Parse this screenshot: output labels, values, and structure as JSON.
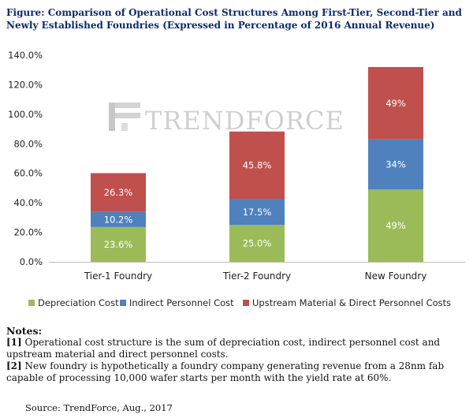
{
  "figure": {
    "title": "Figure: Comparison of Operational Cost Structures Among First-Tier, Second-Tier and Newly Established Foundries (Expressed in Percentage of  2016 Annual Revenue)"
  },
  "watermark": {
    "text": "TrendForce",
    "color": "#a8a8a8"
  },
  "chart_data": {
    "type": "bar",
    "stacked": true,
    "categories": [
      "Tier-1 Foundry",
      "Tier-2 Foundry",
      "New Foundry"
    ],
    "series": [
      {
        "name": "Depreciation Cost",
        "color": "#9bbb59",
        "values": [
          23.6,
          25.0,
          49
        ],
        "labels": [
          "23.6%",
          "25.0%",
          "49%"
        ]
      },
      {
        "name": "Indirect Personnel Cost",
        "color": "#4f81bd",
        "values": [
          10.2,
          17.5,
          34
        ],
        "labels": [
          "10.2%",
          "17.5%",
          "34%"
        ]
      },
      {
        "name": "Upstream Material & Direct Personnel Costs",
        "color": "#c0504d",
        "values": [
          26.3,
          45.8,
          49
        ],
        "labels": [
          "26.3%",
          "45.8%",
          "49%"
        ]
      }
    ],
    "ylim": [
      0,
      140
    ],
    "yticks": [
      0,
      20,
      40,
      60,
      80,
      100,
      120,
      140
    ],
    "yticklabels": [
      "0.0%",
      "20.0%",
      "40.0%",
      "60.0%",
      "80.0%",
      "100.0%",
      "120.0%",
      "140.0%"
    ],
    "grid": false,
    "legend_position": "bottom"
  },
  "notes": {
    "heading": "Notes:",
    "items": [
      {
        "marker": "[1]",
        "text": " Operational cost structure is the sum of depreciation cost, indirect personnel cost and upstream material and direct personnel costs."
      },
      {
        "marker": "[2]",
        "text": " New foundry is hypothetically a foundry company generating revenue from a 28nm fab capable of processing 10,000 wafer starts per month with the yield rate at 60%."
      }
    ]
  },
  "source": "Source: TrendForce, Aug., 2017"
}
